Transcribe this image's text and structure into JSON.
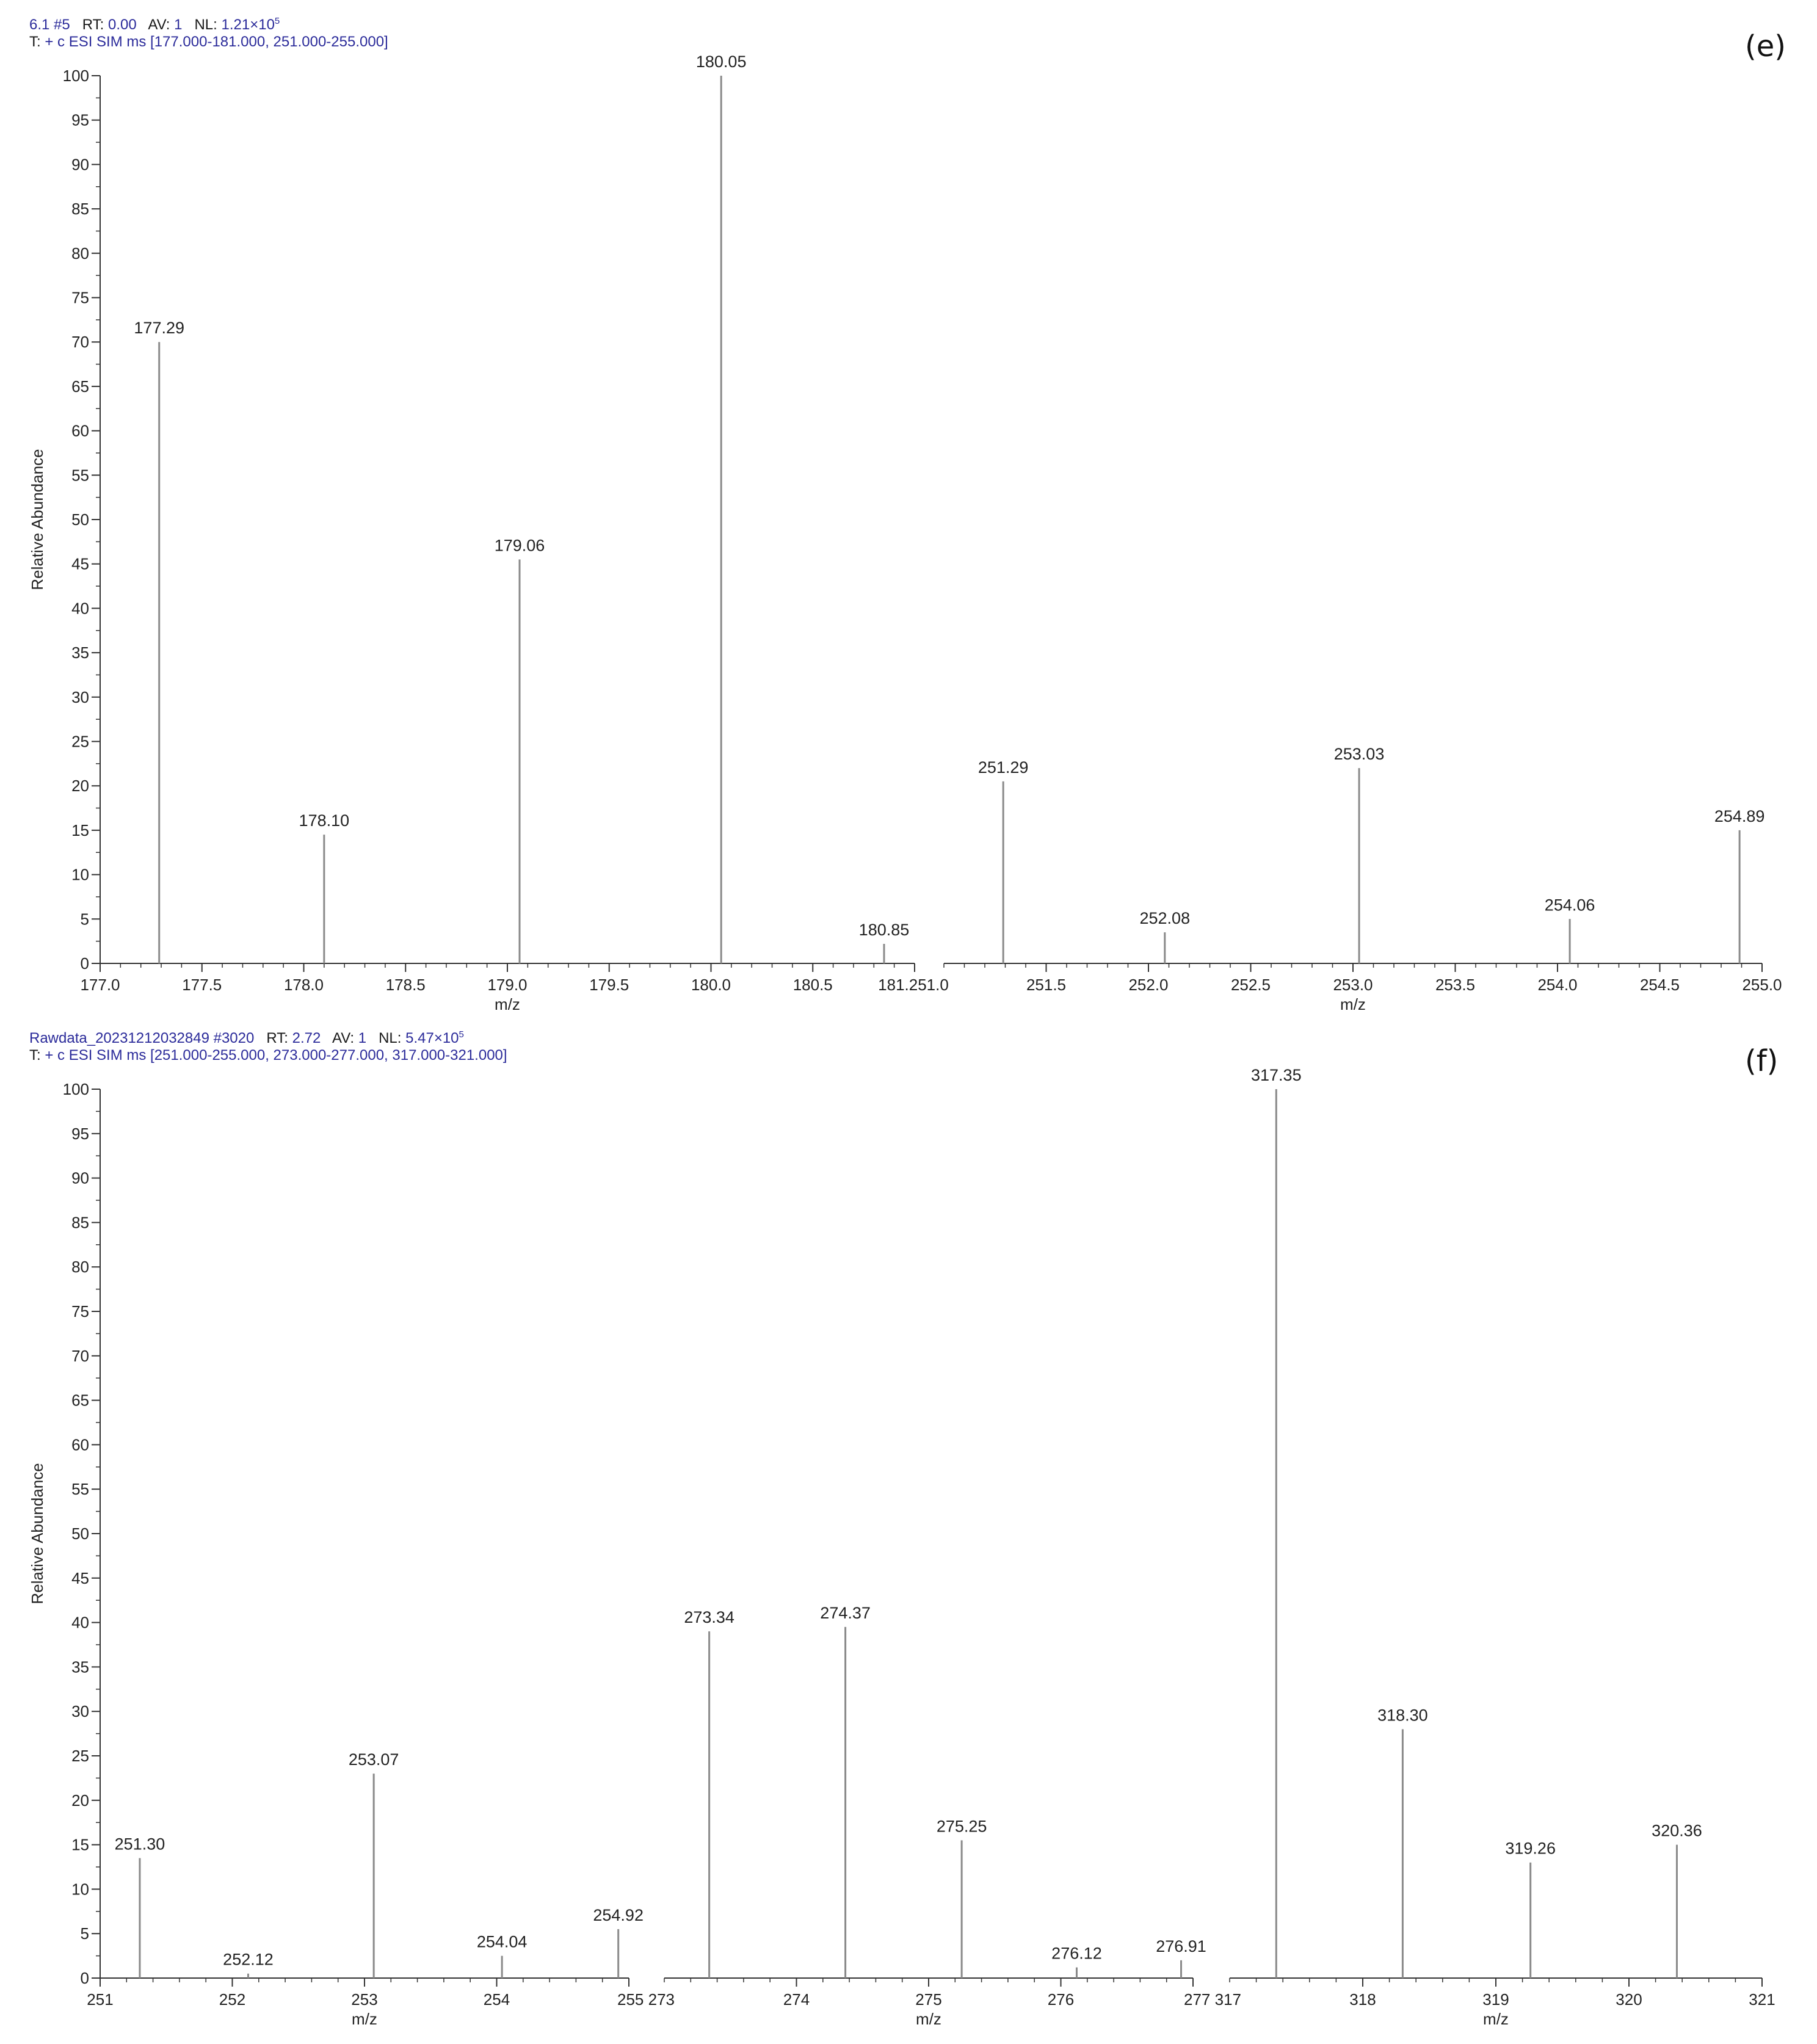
{
  "chart_data": [
    {
      "id": "e",
      "type": "bar",
      "panel_label": "(e)",
      "header": {
        "scan": "6.1 #5",
        "rt_label": "RT:",
        "rt": "0.00",
        "av_label": "AV:",
        "av": "1",
        "nl_label": "NL:",
        "nl_mantissa": "1.21×10",
        "nl_exp": "5",
        "filter_prefix": "T:",
        "filter": "+ c ESI SIM ms [177.000-181.000, 251.000-255.000]"
      },
      "ylabel": "Relative Abundance",
      "ylim": [
        0,
        100
      ],
      "yticks": [
        0,
        5,
        10,
        15,
        20,
        25,
        30,
        35,
        40,
        45,
        50,
        55,
        60,
        65,
        70,
        75,
        80,
        85,
        90,
        95,
        100
      ],
      "segments": [
        {
          "xlim": [
            177.0,
            181.0
          ],
          "ticks": [
            177.0,
            177.5,
            178.0,
            178.5,
            179.0,
            179.5,
            180.0,
            180.5
          ],
          "tick_labels": [
            "177.0",
            "177.5",
            "178.0",
            "178.5",
            "179.0",
            "179.5",
            "180.0",
            "180.5"
          ],
          "xlabel": "m/z",
          "peaks": [
            {
              "x": 177.29,
              "y": 70,
              "label": "177.29"
            },
            {
              "x": 178.1,
              "y": 14.5,
              "label": "178.10"
            },
            {
              "x": 179.06,
              "y": 45.5,
              "label": "179.06"
            },
            {
              "x": 180.05,
              "y": 100,
              "label": "180.05"
            },
            {
              "x": 180.85,
              "y": 2.2,
              "label": "180.85"
            }
          ]
        },
        {
          "xlim": [
            251.0,
            255.0
          ],
          "ticks": [
            251.5,
            252.0,
            252.5,
            253.0,
            253.5,
            254.0,
            254.5,
            255.0
          ],
          "tick_labels": [
            "251.5",
            "252.0",
            "252.5",
            "253.0",
            "253.5",
            "254.0",
            "254.5",
            "255.0"
          ],
          "xlabel": "m/z",
          "peaks": [
            {
              "x": 251.29,
              "y": 20.5,
              "label": "251.29"
            },
            {
              "x": 252.08,
              "y": 3.5,
              "label": "252.08"
            },
            {
              "x": 253.03,
              "y": 22,
              "label": "253.03"
            },
            {
              "x": 254.06,
              "y": 5,
              "label": "254.06"
            },
            {
              "x": 254.89,
              "y": 15,
              "label": "254.89"
            }
          ]
        }
      ],
      "joined_tick_label": "181.251.0"
    },
    {
      "id": "f",
      "type": "bar",
      "panel_label": "(f)",
      "header": {
        "scan": "Rawdata_20231212032849 #3020",
        "rt_label": "RT:",
        "rt": "2.72",
        "av_label": "AV:",
        "av": "1",
        "nl_label": "NL:",
        "nl_mantissa": "5.47×10",
        "nl_exp": "5",
        "filter_prefix": "T:",
        "filter": "+ c ESI SIM ms [251.000-255.000, 273.000-277.000, 317.000-321.000]"
      },
      "ylabel": "Relative Abundance",
      "ylim": [
        0,
        100
      ],
      "yticks": [
        0,
        5,
        10,
        15,
        20,
        25,
        30,
        35,
        40,
        45,
        50,
        55,
        60,
        65,
        70,
        75,
        80,
        85,
        90,
        95,
        100
      ],
      "segments": [
        {
          "xlim": [
            251,
            255
          ],
          "ticks": [
            251,
            252,
            253,
            254
          ],
          "tick_labels": [
            "251",
            "252",
            "253",
            "254"
          ],
          "xlabel": "m/z",
          "peaks": [
            {
              "x": 251.3,
              "y": 13.5,
              "label": "251.30"
            },
            {
              "x": 252.12,
              "y": 0.5,
              "label": "252.12"
            },
            {
              "x": 253.07,
              "y": 23,
              "label": "253.07"
            },
            {
              "x": 254.04,
              "y": 2.5,
              "label": "254.04"
            },
            {
              "x": 254.92,
              "y": 5.5,
              "label": "254.92"
            }
          ]
        },
        {
          "xlim": [
            273,
            277
          ],
          "ticks": [
            274,
            275,
            276
          ],
          "tick_labels": [
            "274",
            "275",
            "276"
          ],
          "xlabel": "m/z",
          "peaks": [
            {
              "x": 273.34,
              "y": 39,
              "label": "273.34"
            },
            {
              "x": 274.37,
              "y": 39.5,
              "label": "274.37"
            },
            {
              "x": 275.25,
              "y": 15.5,
              "label": "275.25"
            },
            {
              "x": 276.12,
              "y": 1.2,
              "label": "276.12"
            },
            {
              "x": 276.91,
              "y": 2,
              "label": "276.91"
            }
          ]
        },
        {
          "xlim": [
            317,
            321
          ],
          "ticks": [
            318,
            319,
            320,
            321
          ],
          "tick_labels": [
            "318",
            "319",
            "320",
            "321"
          ],
          "xlabel": "m/z",
          "peaks": [
            {
              "x": 317.35,
              "y": 100,
              "label": "317.35"
            },
            {
              "x": 318.3,
              "y": 28,
              "label": "318.30"
            },
            {
              "x": 319.26,
              "y": 13,
              "label": "319.26"
            },
            {
              "x": 320.36,
              "y": 15,
              "label": "320.36"
            }
          ]
        }
      ],
      "joined_tick_labels": [
        "255 273",
        "277 317"
      ]
    }
  ]
}
